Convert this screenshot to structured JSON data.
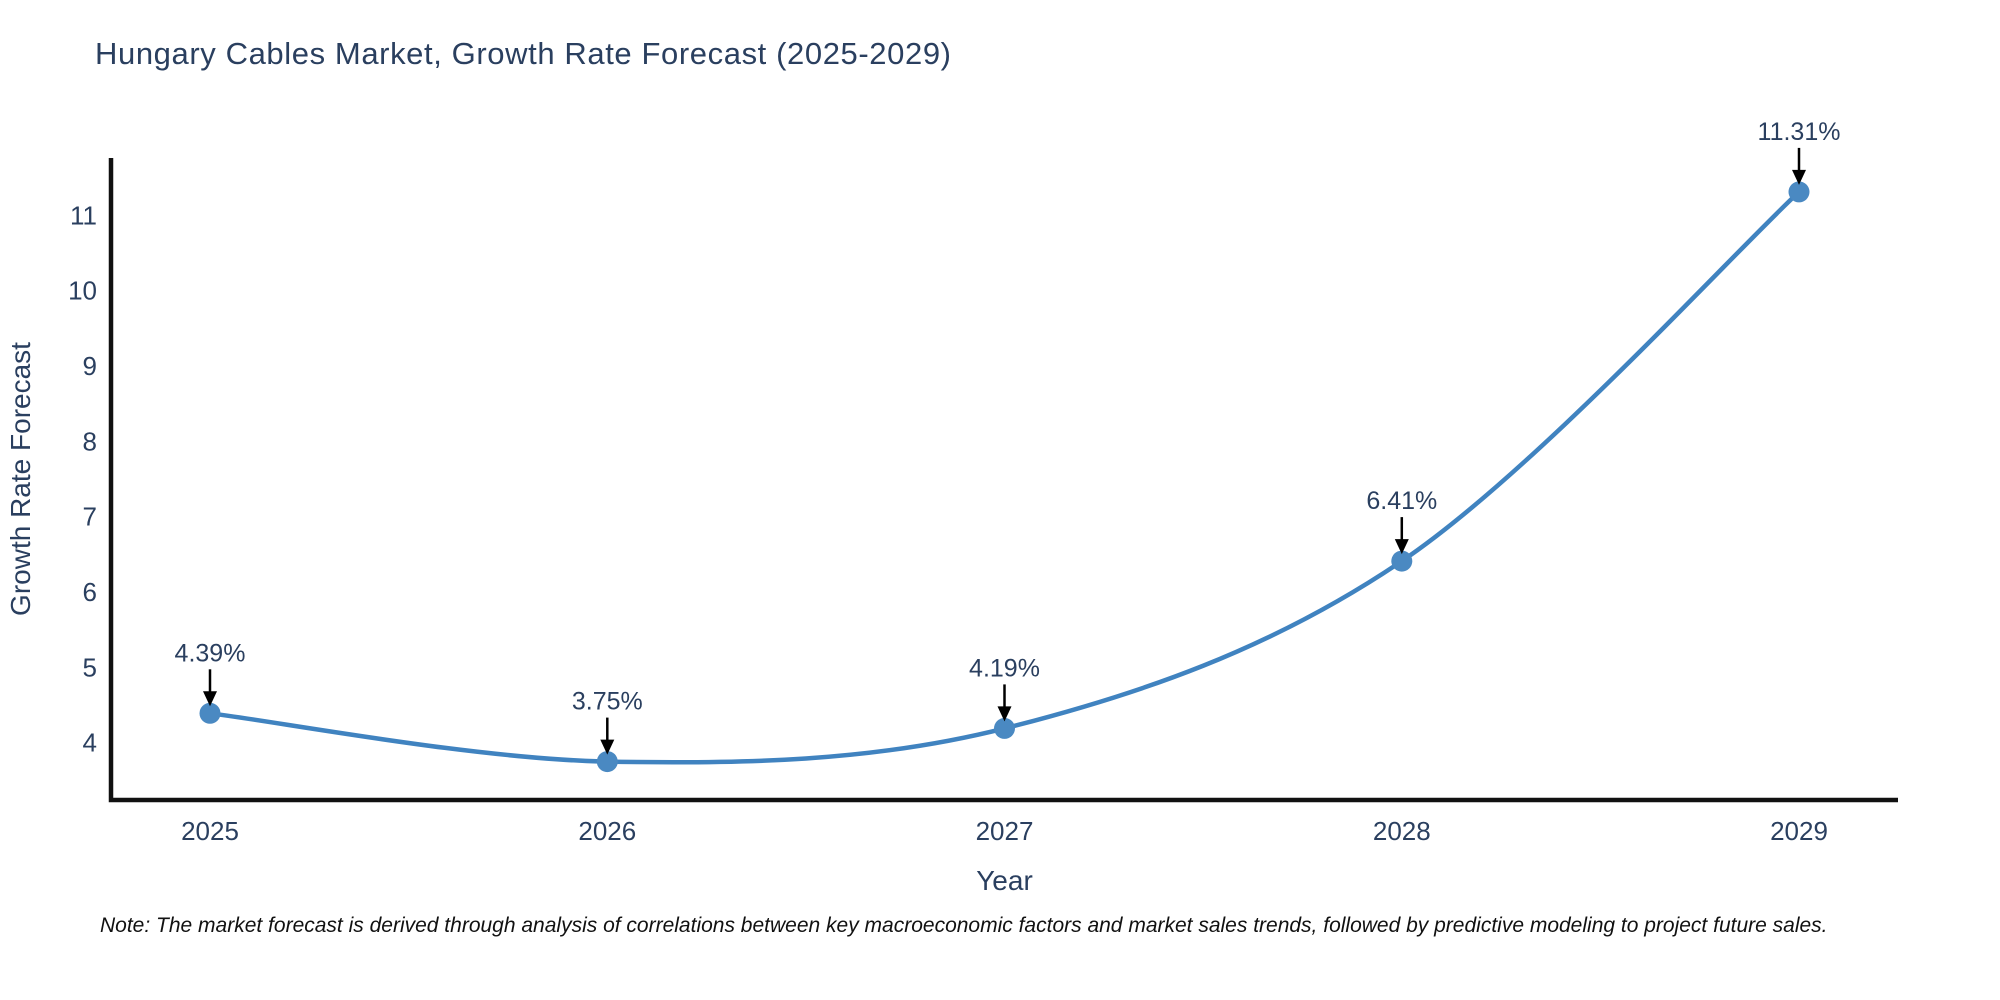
{
  "page": {
    "title": "Hungary Cables Market, Growth Rate Forecast (2025-2029)",
    "note": "Note: The market forecast is derived through analysis of correlations between key macroeconomic factors and market sales trends, followed by predictive modeling to project future sales."
  },
  "chart_data": {
    "type": "line",
    "title": "Hungary Cables Market, Growth Rate Forecast (2025-2029)",
    "categories": [
      "2025",
      "2026",
      "2027",
      "2028",
      "2029"
    ],
    "values": [
      4.39,
      3.75,
      4.19,
      6.41,
      11.31
    ],
    "annotations": [
      "4.39%",
      "3.75%",
      "4.19%",
      "6.41%",
      "11.31%"
    ],
    "xlabel": "Year",
    "ylabel": "Growth Rate Forecast",
    "yticks": [
      4,
      5,
      6,
      7,
      8,
      9,
      10,
      11
    ],
    "ylim": [
      3.24,
      11.76
    ],
    "grid": false,
    "legend": "none",
    "line_style": "spline",
    "marker": "circle",
    "colors": {
      "line": "#4083c0",
      "marker": "#4a89c2",
      "axis": "#111111",
      "text": "#2a3f5f",
      "annotation_arrow": "#000000",
      "background": "#ffffff"
    }
  }
}
